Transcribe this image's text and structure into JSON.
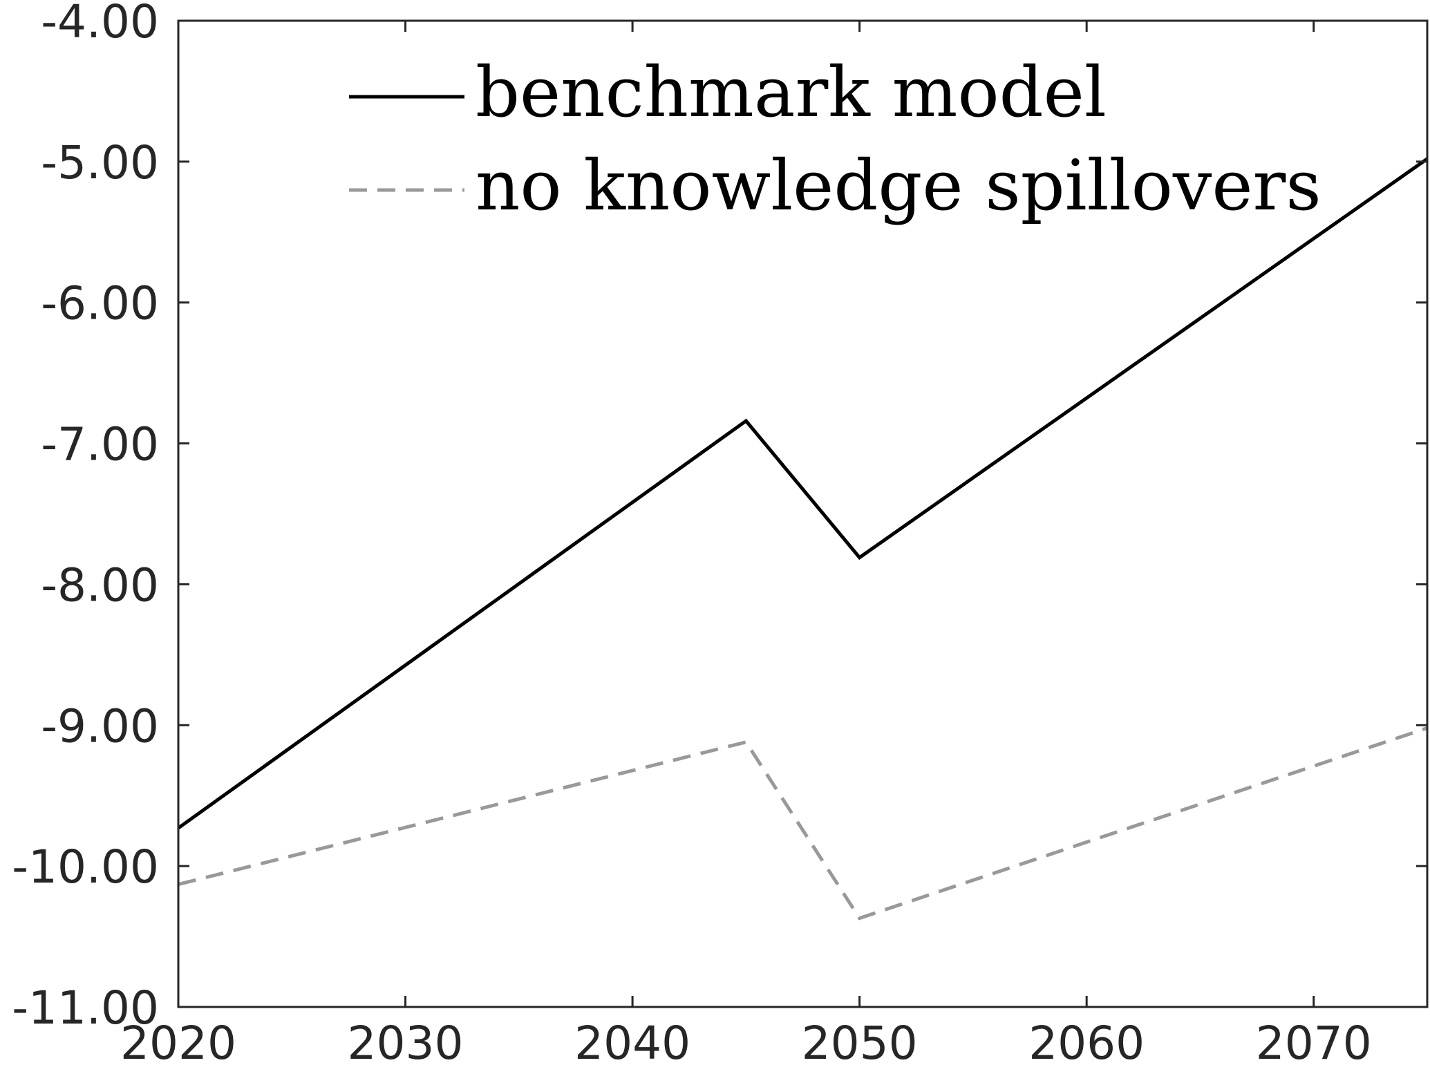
{
  "chart_data": {
    "type": "line",
    "title": "",
    "xlabel": "",
    "ylabel": "",
    "xlim": [
      2020,
      2075
    ],
    "ylim": [
      -11,
      -4
    ],
    "x_ticks": [
      2020,
      2030,
      2040,
      2050,
      2060,
      2070
    ],
    "x_tick_labels": [
      "2020",
      "2030",
      "2040",
      "2050",
      "2060",
      "2070"
    ],
    "y_ticks": [
      -4,
      -5,
      -6,
      -7,
      -8,
      -9,
      -10,
      -11
    ],
    "y_tick_labels": [
      "-4.00",
      "-5.00",
      "-6.00",
      "-7.00",
      "-8.00",
      "-9.00",
      "-10.00",
      "-11.00"
    ],
    "grid": false,
    "legend_position": "top",
    "series": [
      {
        "name": "benchmark model",
        "color": "#000000",
        "style": "solid",
        "x": [
          2020,
          2045,
          2050,
          2075
        ],
        "y": [
          -9.73,
          -6.84,
          -7.81,
          -4.98
        ]
      },
      {
        "name": "no knowledge spillovers",
        "color": "#999999",
        "style": "dashed",
        "x": [
          2020,
          2045,
          2050,
          2075
        ],
        "y": [
          -10.13,
          -9.12,
          -10.37,
          -9.02
        ]
      }
    ]
  }
}
